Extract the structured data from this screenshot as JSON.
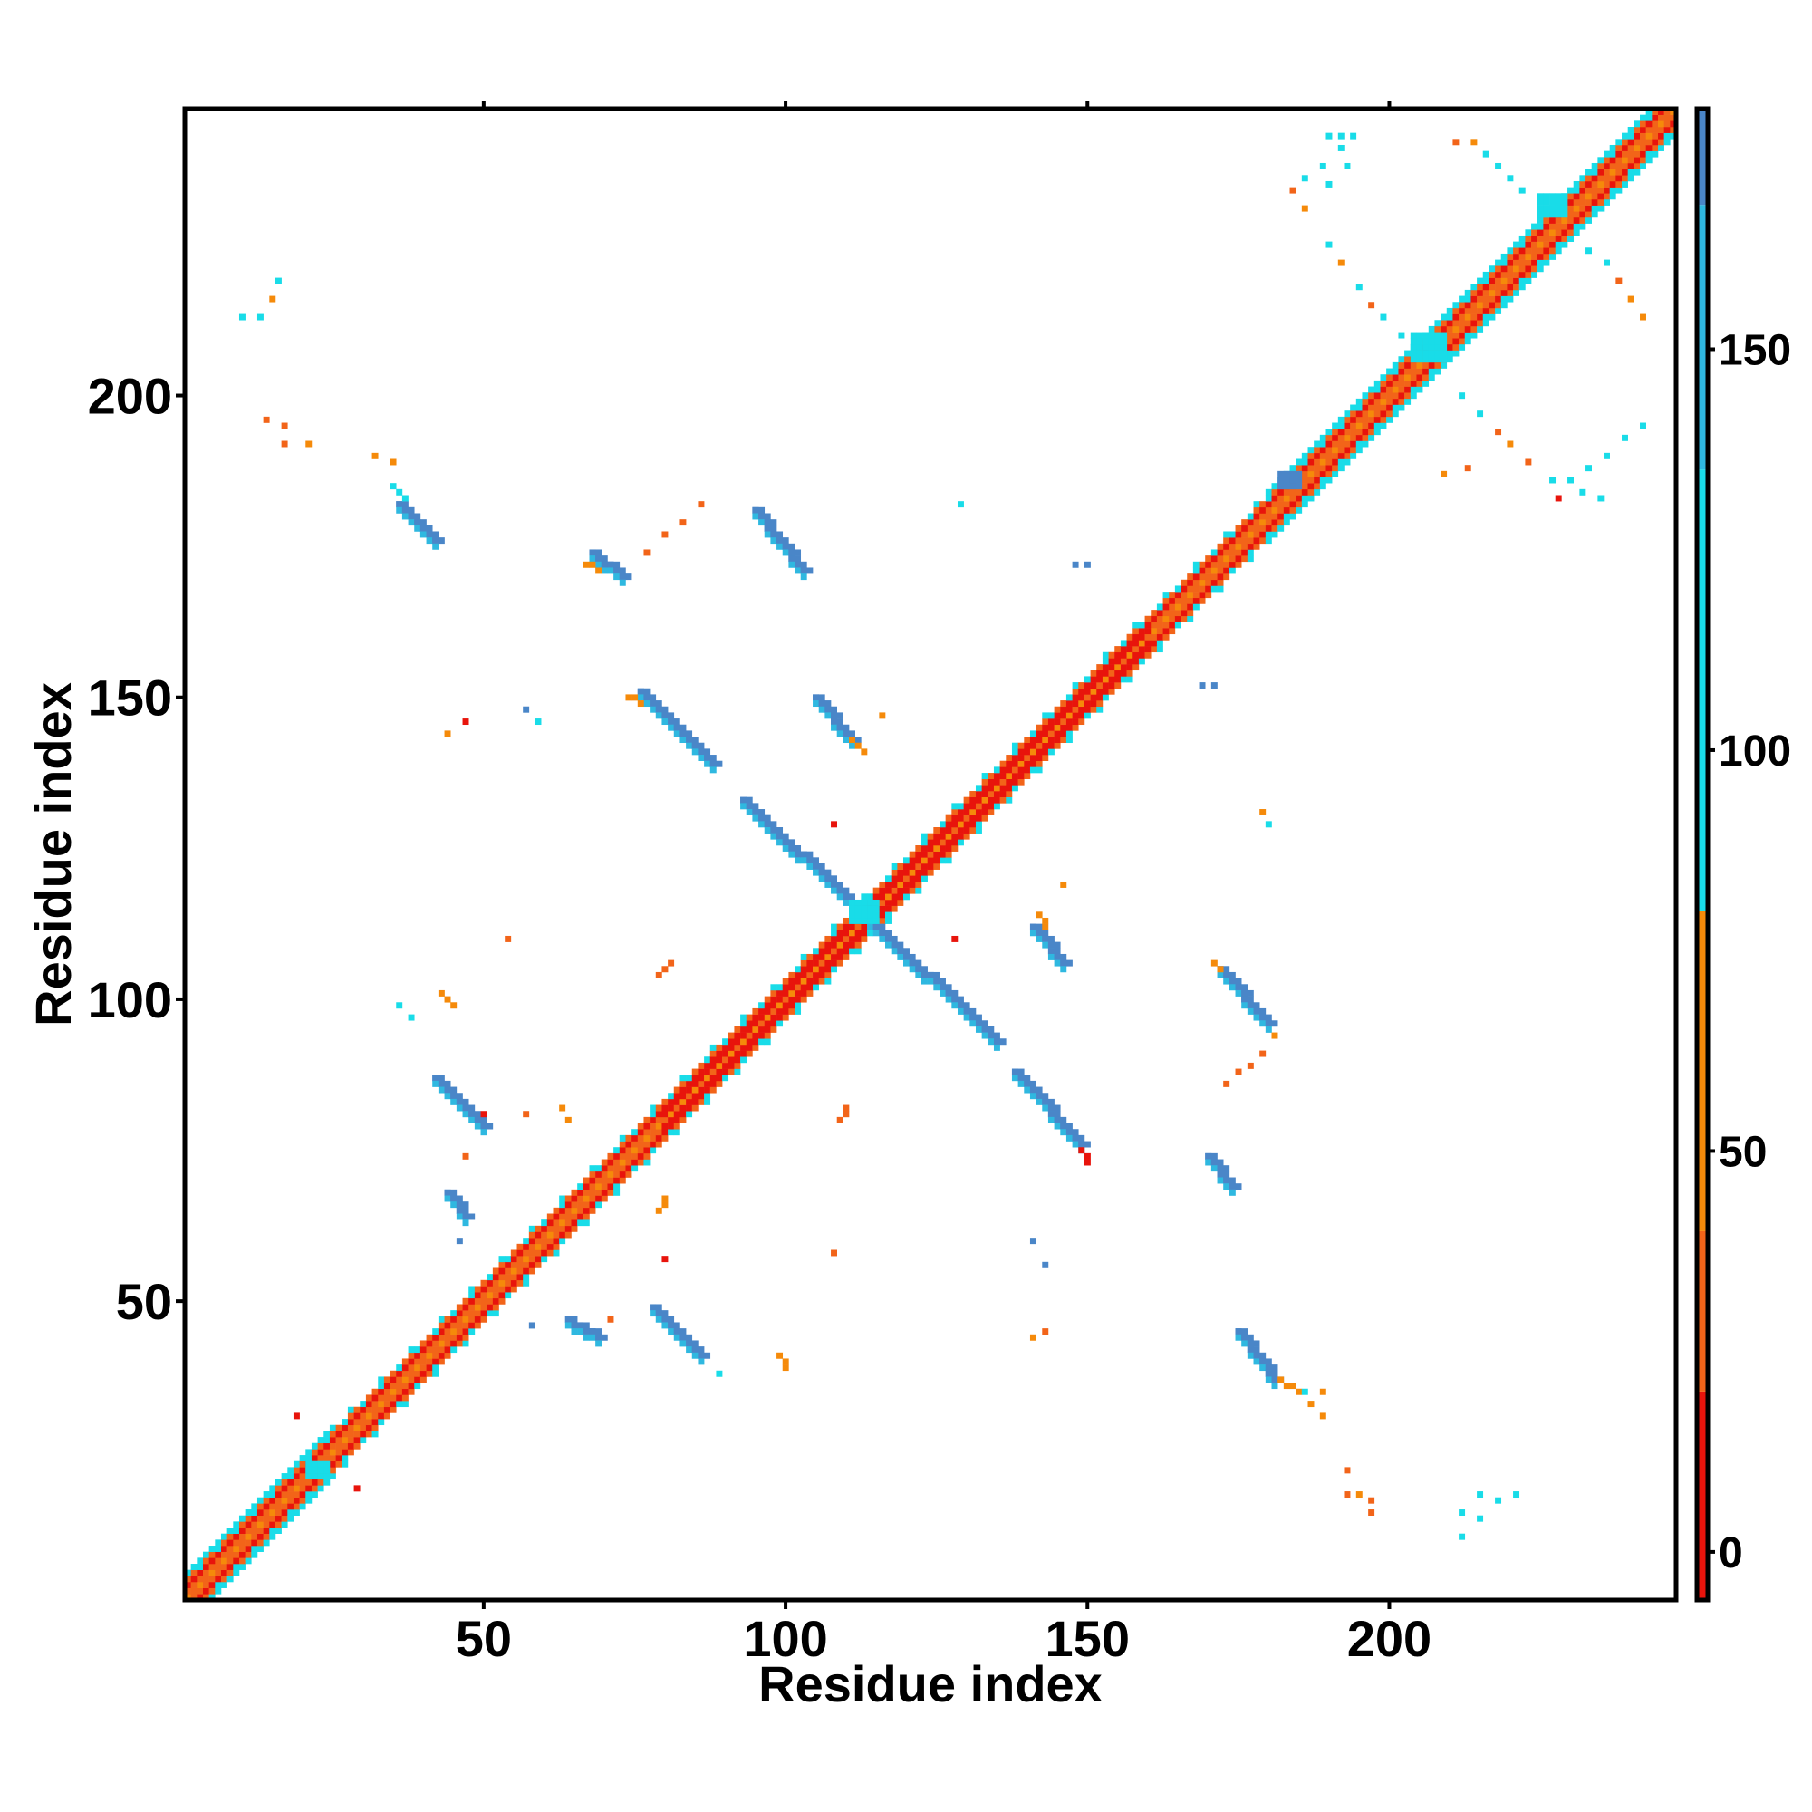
{
  "chart_data": {
    "type": "heatmap",
    "title": "",
    "xlabel": "Residue index",
    "ylabel": "Residue index",
    "xlim": [
      1,
      247
    ],
    "ylim": [
      1,
      247
    ],
    "xticks": [
      50,
      100,
      150,
      200
    ],
    "yticks": [
      50,
      100,
      150,
      200
    ],
    "grid": false,
    "colorbar": {
      "range": [
        -6,
        180
      ],
      "ticks": [
        0,
        50,
        100,
        150
      ],
      "bands": [
        {
          "from": -6,
          "to": 20,
          "color": "#e8140c"
        },
        {
          "from": 20,
          "to": 40,
          "color": "#f26419"
        },
        {
          "from": 40,
          "to": 80,
          "color": "#f58a0a"
        },
        {
          "from": 80,
          "to": 135,
          "color": "#19dce8"
        },
        {
          "from": 135,
          "to": 168,
          "color": "#2fb8e0"
        },
        {
          "from": 168,
          "to": 180,
          "color": "#4a86c8"
        }
      ]
    },
    "colors": {
      "red": "#e8140c",
      "orange": "#f26419",
      "amber": "#f58a0a",
      "cyan": "#19dce8",
      "lightblue": "#2fb8e0",
      "steel": "#4a86c8"
    },
    "diagonal": {
      "from": 1,
      "to": 247
    },
    "segments": [
      {
        "x1": 36,
        "y1": 182,
        "x2": 42,
        "y2": 176,
        "w": 2,
        "c": "steel"
      },
      {
        "x1": 35,
        "y1": 185,
        "x2": 37,
        "y2": 183,
        "w": 1,
        "c": "cyan"
      },
      {
        "x1": 68,
        "y1": 174,
        "x2": 73,
        "y2": 170,
        "w": 2,
        "c": "steel"
      },
      {
        "x1": 67,
        "y1": 172,
        "x2": 69,
        "y2": 171,
        "w": 1,
        "c": "amber"
      },
      {
        "x1": 95,
        "y1": 181,
        "x2": 103,
        "y2": 171,
        "w": 2,
        "c": "steel"
      },
      {
        "x1": 76,
        "y1": 151,
        "x2": 88,
        "y2": 139,
        "w": 2,
        "c": "steel"
      },
      {
        "x1": 74,
        "y1": 150,
        "x2": 76,
        "y2": 149,
        "w": 1,
        "c": "amber"
      },
      {
        "x1": 105,
        "y1": 150,
        "x2": 111,
        "y2": 143,
        "w": 2,
        "c": "steel"
      },
      {
        "x1": 111,
        "y1": 143,
        "x2": 113,
        "y2": 141,
        "w": 1,
        "c": "amber"
      },
      {
        "x1": 93,
        "y1": 133,
        "x2": 113,
        "y2": 114,
        "w": 2,
        "c": "steel"
      },
      {
        "x1": 113,
        "y1": 114,
        "x2": 135,
        "y2": 93,
        "w": 2,
        "c": "steel"
      },
      {
        "x1": 141,
        "y1": 112,
        "x2": 146,
        "y2": 106,
        "w": 2,
        "c": "steel"
      },
      {
        "x1": 142,
        "y1": 114,
        "x2": 143,
        "y2": 112,
        "w": 1,
        "c": "amber"
      },
      {
        "x1": 138,
        "y1": 88,
        "x2": 149,
        "y2": 76,
        "w": 2,
        "c": "steel"
      },
      {
        "x1": 149,
        "y1": 75,
        "x2": 150,
        "y2": 73,
        "w": 1,
        "c": "red"
      },
      {
        "x1": 172,
        "y1": 105,
        "x2": 180,
        "y2": 96,
        "w": 2,
        "c": "steel"
      },
      {
        "x1": 171,
        "y1": 106,
        "x2": 172,
        "y2": 105,
        "w": 1,
        "c": "amber"
      },
      {
        "x1": 170,
        "y1": 74,
        "x2": 174,
        "y2": 69,
        "w": 2,
        "c": "steel"
      },
      {
        "x1": 175,
        "y1": 45,
        "x2": 181,
        "y2": 37,
        "w": 2,
        "c": "steel"
      },
      {
        "x1": 182,
        "y1": 37,
        "x2": 185,
        "y2": 35,
        "w": 1,
        "c": "amber"
      },
      {
        "x1": 42,
        "y1": 87,
        "x2": 50,
        "y2": 79,
        "w": 2,
        "c": "steel"
      },
      {
        "x1": 44,
        "y1": 68,
        "x2": 47,
        "y2": 64,
        "w": 2,
        "c": "steel"
      },
      {
        "x1": 64,
        "y1": 47,
        "x2": 69,
        "y2": 44,
        "w": 2,
        "c": "steel"
      },
      {
        "x1": 78,
        "y1": 49,
        "x2": 86,
        "y2": 41,
        "w": 2,
        "c": "steel"
      },
      {
        "x1": 43,
        "y1": 101,
        "x2": 45,
        "y2": 99,
        "w": 1,
        "c": "amber"
      },
      {
        "x1": 79,
        "y1": 104,
        "x2": 81,
        "y2": 106,
        "w": 1,
        "c": "orange"
      },
      {
        "x1": 100,
        "y1": 39,
        "x2": 99,
        "y2": 41,
        "w": 1,
        "c": "amber"
      },
      {
        "x1": 79,
        "y1": 65,
        "x2": 80,
        "y2": 67,
        "w": 1,
        "c": "amber"
      },
      {
        "x1": 109,
        "y1": 80,
        "x2": 110,
        "y2": 82,
        "w": 1,
        "c": "orange"
      }
    ],
    "blocks": [
      {
        "x": 204,
        "y": 206,
        "w": 6,
        "h": 5,
        "c": "cyan"
      },
      {
        "x": 225,
        "y": 230,
        "w": 5,
        "h": 4,
        "c": "cyan"
      },
      {
        "x": 111,
        "y": 113,
        "w": 5,
        "h": 4,
        "c": "cyan"
      },
      {
        "x": 21,
        "y": 21,
        "w": 4,
        "h": 3,
        "c": "cyan"
      },
      {
        "x": 182,
        "y": 185,
        "w": 4,
        "h": 3,
        "c": "steel"
      }
    ],
    "points": [
      {
        "x": 190,
        "y": 243,
        "c": "cyan"
      },
      {
        "x": 192,
        "y": 243,
        "c": "cyan"
      },
      {
        "x": 194,
        "y": 243,
        "c": "cyan"
      },
      {
        "x": 192,
        "y": 241,
        "c": "cyan"
      },
      {
        "x": 189,
        "y": 238,
        "c": "cyan"
      },
      {
        "x": 186,
        "y": 236,
        "c": "cyan"
      },
      {
        "x": 184,
        "y": 234,
        "c": "orange"
      },
      {
        "x": 186,
        "y": 231,
        "c": "amber"
      },
      {
        "x": 190,
        "y": 235,
        "c": "cyan"
      },
      {
        "x": 193,
        "y": 238,
        "c": "cyan"
      },
      {
        "x": 211,
        "y": 242,
        "c": "orange"
      },
      {
        "x": 214,
        "y": 242,
        "c": "amber"
      },
      {
        "x": 216,
        "y": 240,
        "c": "cyan"
      },
      {
        "x": 218,
        "y": 238,
        "c": "cyan"
      },
      {
        "x": 220,
        "y": 236,
        "c": "cyan"
      },
      {
        "x": 222,
        "y": 234,
        "c": "cyan"
      },
      {
        "x": 190,
        "y": 225,
        "c": "cyan"
      },
      {
        "x": 192,
        "y": 222,
        "c": "amber"
      },
      {
        "x": 195,
        "y": 218,
        "c": "cyan"
      },
      {
        "x": 197,
        "y": 215,
        "c": "orange"
      },
      {
        "x": 199,
        "y": 213,
        "c": "cyan"
      },
      {
        "x": 202,
        "y": 210,
        "c": "cyan"
      },
      {
        "x": 230,
        "y": 226,
        "c": "cyan"
      },
      {
        "x": 233,
        "y": 224,
        "c": "cyan"
      },
      {
        "x": 236,
        "y": 222,
        "c": "cyan"
      },
      {
        "x": 238,
        "y": 219,
        "c": "orange"
      },
      {
        "x": 240,
        "y": 216,
        "c": "amber"
      },
      {
        "x": 242,
        "y": 213,
        "c": "amber"
      },
      {
        "x": 212,
        "y": 200,
        "c": "cyan"
      },
      {
        "x": 215,
        "y": 197,
        "c": "cyan"
      },
      {
        "x": 218,
        "y": 194,
        "c": "orange"
      },
      {
        "x": 220,
        "y": 192,
        "c": "amber"
      },
      {
        "x": 223,
        "y": 189,
        "c": "orange"
      },
      {
        "x": 227,
        "y": 186,
        "c": "cyan"
      },
      {
        "x": 230,
        "y": 186,
        "c": "cyan"
      },
      {
        "x": 233,
        "y": 188,
        "c": "cyan"
      },
      {
        "x": 236,
        "y": 190,
        "c": "cyan"
      },
      {
        "x": 239,
        "y": 193,
        "c": "cyan"
      },
      {
        "x": 242,
        "y": 195,
        "c": "cyan"
      },
      {
        "x": 228,
        "y": 183,
        "c": "red"
      },
      {
        "x": 232,
        "y": 184,
        "c": "cyan"
      },
      {
        "x": 235,
        "y": 183,
        "c": "cyan"
      },
      {
        "x": 209,
        "y": 187,
        "c": "amber"
      },
      {
        "x": 213,
        "y": 188,
        "c": "orange"
      },
      {
        "x": 10,
        "y": 213,
        "c": "cyan"
      },
      {
        "x": 13,
        "y": 213,
        "c": "cyan"
      },
      {
        "x": 15,
        "y": 216,
        "c": "amber"
      },
      {
        "x": 16,
        "y": 219,
        "c": "cyan"
      },
      {
        "x": 14,
        "y": 196,
        "c": "orange"
      },
      {
        "x": 17,
        "y": 195,
        "c": "orange"
      },
      {
        "x": 17,
        "y": 192,
        "c": "orange"
      },
      {
        "x": 21,
        "y": 192,
        "c": "amber"
      },
      {
        "x": 32,
        "y": 190,
        "c": "amber"
      },
      {
        "x": 35,
        "y": 189,
        "c": "amber"
      },
      {
        "x": 86,
        "y": 182,
        "c": "orange"
      },
      {
        "x": 83,
        "y": 179,
        "c": "orange"
      },
      {
        "x": 80,
        "y": 177,
        "c": "orange"
      },
      {
        "x": 77,
        "y": 174,
        "c": "orange"
      },
      {
        "x": 129,
        "y": 182,
        "c": "cyan"
      },
      {
        "x": 150,
        "y": 172,
        "c": "steel"
      },
      {
        "x": 148,
        "y": 172,
        "c": "steel"
      },
      {
        "x": 171,
        "y": 152,
        "c": "steel"
      },
      {
        "x": 169,
        "y": 152,
        "c": "steel"
      },
      {
        "x": 116,
        "y": 147,
        "c": "amber"
      },
      {
        "x": 180,
        "y": 129,
        "c": "cyan"
      },
      {
        "x": 179,
        "y": 131,
        "c": "amber"
      },
      {
        "x": 57,
        "y": 148,
        "c": "steel"
      },
      {
        "x": 59,
        "y": 146,
        "c": "cyan"
      },
      {
        "x": 47,
        "y": 146,
        "c": "red"
      },
      {
        "x": 44,
        "y": 144,
        "c": "amber"
      },
      {
        "x": 108,
        "y": 129,
        "c": "red"
      },
      {
        "x": 54,
        "y": 110,
        "c": "orange"
      },
      {
        "x": 128,
        "y": 110,
        "c": "red"
      },
      {
        "x": 146,
        "y": 119,
        "c": "amber"
      },
      {
        "x": 38,
        "y": 97,
        "c": "cyan"
      },
      {
        "x": 36,
        "y": 99,
        "c": "cyan"
      },
      {
        "x": 50,
        "y": 81,
        "c": "red"
      },
      {
        "x": 57,
        "y": 81,
        "c": "orange"
      },
      {
        "x": 63,
        "y": 82,
        "c": "amber"
      },
      {
        "x": 64,
        "y": 80,
        "c": "amber"
      },
      {
        "x": 47,
        "y": 74,
        "c": "orange"
      },
      {
        "x": 80,
        "y": 57,
        "c": "red"
      },
      {
        "x": 46,
        "y": 60,
        "c": "steel"
      },
      {
        "x": 108,
        "y": 58,
        "c": "orange"
      },
      {
        "x": 141,
        "y": 60,
        "c": "steel"
      },
      {
        "x": 143,
        "y": 56,
        "c": "steel"
      },
      {
        "x": 71,
        "y": 47,
        "c": "orange"
      },
      {
        "x": 58,
        "y": 46,
        "c": "steel"
      },
      {
        "x": 89,
        "y": 38,
        "c": "cyan"
      },
      {
        "x": 141,
        "y": 44,
        "c": "amber"
      },
      {
        "x": 143,
        "y": 45,
        "c": "orange"
      },
      {
        "x": 181,
        "y": 94,
        "c": "amber"
      },
      {
        "x": 179,
        "y": 91,
        "c": "orange"
      },
      {
        "x": 177,
        "y": 89,
        "c": "orange"
      },
      {
        "x": 175,
        "y": 88,
        "c": "orange"
      },
      {
        "x": 173,
        "y": 86,
        "c": "orange"
      },
      {
        "x": 186,
        "y": 35,
        "c": "cyan"
      },
      {
        "x": 187,
        "y": 33,
        "c": "amber"
      },
      {
        "x": 189,
        "y": 35,
        "c": "amber"
      },
      {
        "x": 189,
        "y": 31,
        "c": "amber"
      },
      {
        "x": 193,
        "y": 22,
        "c": "orange"
      },
      {
        "x": 195,
        "y": 18,
        "c": "amber"
      },
      {
        "x": 193,
        "y": 18,
        "c": "orange"
      },
      {
        "x": 197,
        "y": 17,
        "c": "orange"
      },
      {
        "x": 197,
        "y": 15,
        "c": "orange"
      },
      {
        "x": 212,
        "y": 15,
        "c": "cyan"
      },
      {
        "x": 212,
        "y": 11,
        "c": "cyan"
      },
      {
        "x": 215,
        "y": 14,
        "c": "cyan"
      },
      {
        "x": 215,
        "y": 18,
        "c": "cyan"
      },
      {
        "x": 218,
        "y": 17,
        "c": "cyan"
      },
      {
        "x": 221,
        "y": 18,
        "c": "cyan"
      },
      {
        "x": 19,
        "y": 31,
        "c": "red"
      },
      {
        "x": 29,
        "y": 19,
        "c": "red"
      }
    ]
  }
}
